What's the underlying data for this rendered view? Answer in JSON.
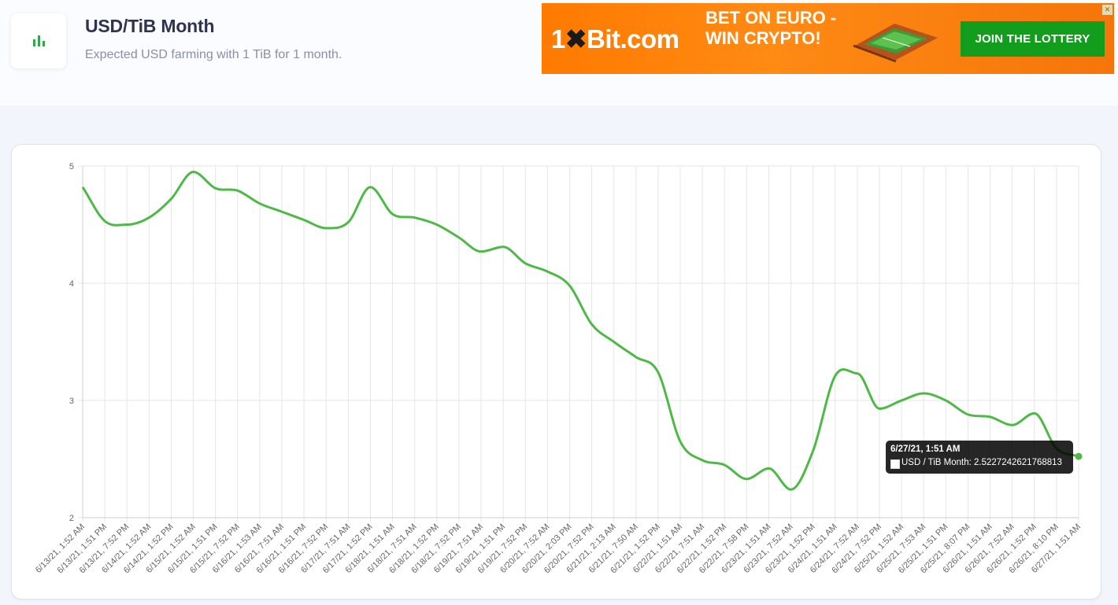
{
  "header": {
    "icon": "bar-chart-icon",
    "title": "USD/TiB Month",
    "subtitle": "Expected USD farming with 1 TiB for 1 month."
  },
  "ad": {
    "brand_prefix": "1",
    "brand_mark": "✖",
    "brand_suffix": "Bit.com",
    "slogan": "BET ON EURO - WIN CRYPTO!",
    "cta": "JOIN THE LOTTERY",
    "close": "✕",
    "colors": {
      "background": "#ff7a00",
      "cta": "#129e1c"
    }
  },
  "tooltip": {
    "title": "6/27/21, 1:51 AM",
    "label": "USD / TiB Month: 2.5227242621768813"
  },
  "chart_data": {
    "type": "line",
    "xlabel": "",
    "ylabel": "",
    "ylim": [
      2,
      5
    ],
    "yticks": [
      "2",
      "3",
      "4",
      "5"
    ],
    "grid": true,
    "color": "#4cba45",
    "categories": [
      "6/13/21, 1:52 AM",
      "6/13/21, 1:51 PM",
      "6/13/21, 7:52 PM",
      "6/14/21, 1:52 AM",
      "6/14/21, 1:52 PM",
      "6/15/21, 1:52 AM",
      "6/15/21, 1:51 PM",
      "6/15/21, 7:52 PM",
      "6/16/21, 1:53 AM",
      "6/16/21, 7:51 AM",
      "6/16/21, 1:51 PM",
      "6/16/21, 7:52 PM",
      "6/17/21, 7:51 AM",
      "6/17/21, 1:52 PM",
      "6/18/21, 1:51 AM",
      "6/18/21, 7:51 AM",
      "6/18/21, 1:52 PM",
      "6/18/21, 7:52 PM",
      "6/19/21, 7:51 AM",
      "6/19/21, 1:51 PM",
      "6/19/21, 7:52 PM",
      "6/20/21, 7:52 AM",
      "6/20/21, 2:03 PM",
      "6/20/21, 7:52 PM",
      "6/21/21, 2:13 AM",
      "6/21/21, 7:50 AM",
      "6/21/21, 1:52 PM",
      "6/22/21, 1:51 AM",
      "6/22/21, 7:51 AM",
      "6/22/21, 1:52 PM",
      "6/22/21, 7:58 PM",
      "6/23/21, 1:51 AM",
      "6/23/21, 7:52 AM",
      "6/23/21, 1:52 PM",
      "6/24/21, 1:51 AM",
      "6/24/21, 7:52 AM",
      "6/24/21, 7:52 PM",
      "6/25/21, 1:52 AM",
      "6/25/21, 7:53 AM",
      "6/25/21, 1:51 PM",
      "6/25/21, 8:07 PM",
      "6/26/21, 1:51 AM",
      "6/26/21, 7:52 AM",
      "6/26/21, 1:52 PM",
      "6/26/21, 8:10 PM",
      "6/27/21, 1:51 AM"
    ],
    "series": [
      {
        "values": [
          4.82,
          4.53,
          4.5,
          4.56,
          4.72,
          4.95,
          4.81,
          4.79,
          4.68,
          4.61,
          4.54,
          4.47,
          4.52,
          4.82,
          4.59,
          4.56,
          4.5,
          4.39,
          4.27,
          4.31,
          4.17,
          4.1,
          3.98,
          3.65,
          3.5,
          3.37,
          3.24,
          2.65,
          2.49,
          2.45,
          2.33,
          2.42,
          2.24,
          2.57,
          3.21,
          3.23,
          2.93,
          3.0,
          3.06,
          3.0,
          2.88,
          2.86,
          2.79,
          2.89,
          2.59,
          2.5227242621768813
        ]
      }
    ]
  }
}
